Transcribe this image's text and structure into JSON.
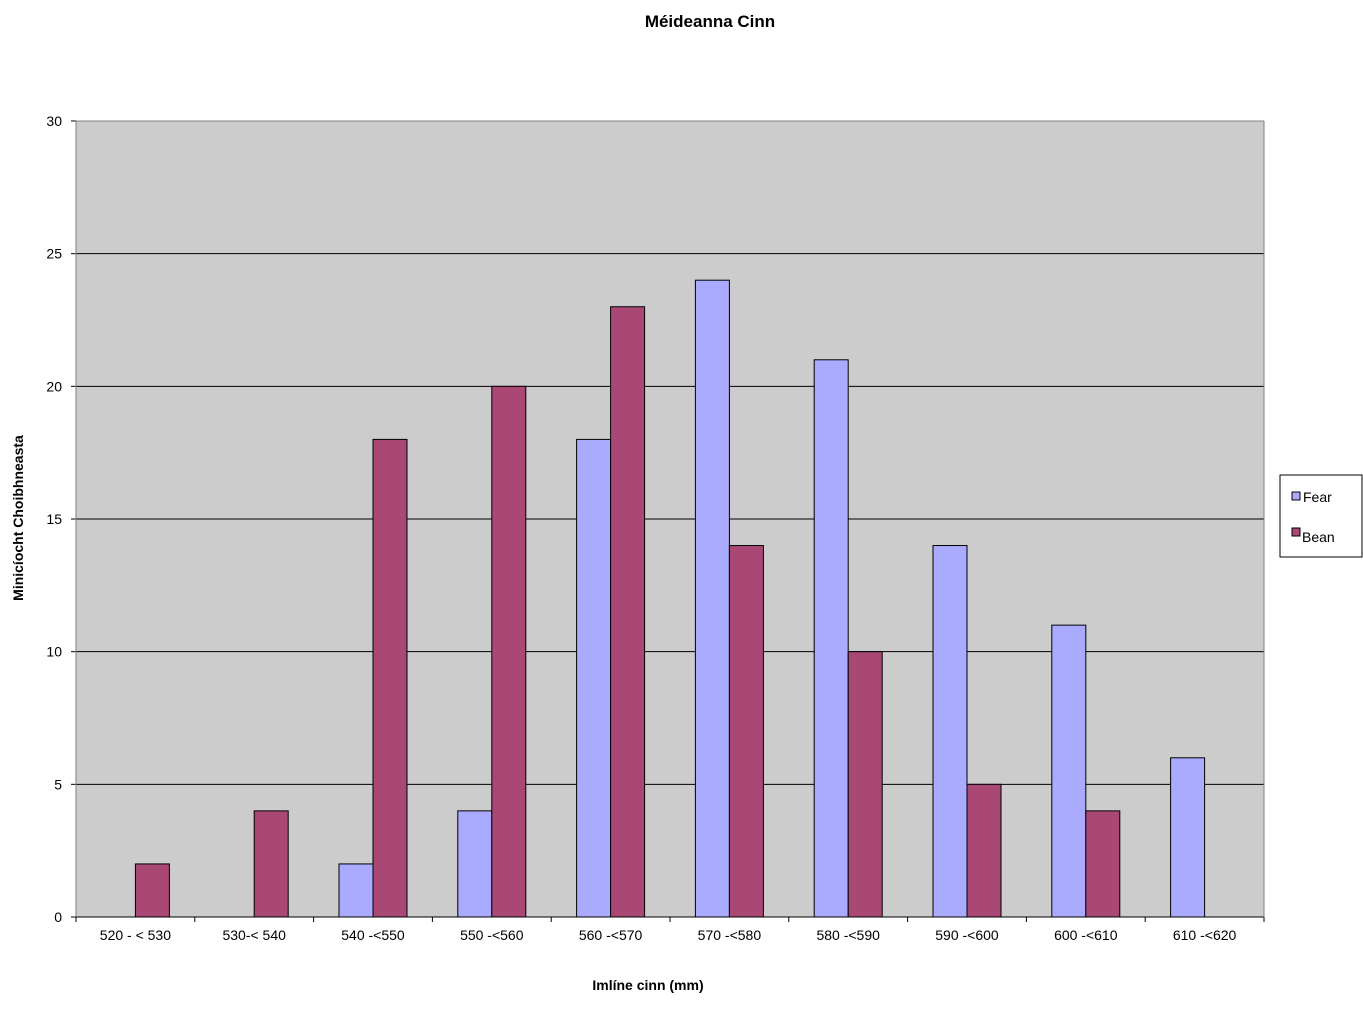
{
  "chart_data": {
    "type": "bar",
    "title": "Méideanna Cinn",
    "xlabel": "Imlíne cinn (mm)",
    "ylabel": "Minicíocht Choibhneasta",
    "categories": [
      "520 - < 530",
      "530-< 540",
      "540 -<550",
      "550 -<560",
      "560 -<570",
      "570 -<580",
      "580 -<590",
      "590 -<600",
      "600 -<610",
      "610 -<620"
    ],
    "series": [
      {
        "name": "Fear",
        "color": "#aaaaff",
        "values": [
          0,
          0,
          2,
          4,
          18,
          24,
          21,
          14,
          11,
          6
        ]
      },
      {
        "name": "Bean",
        "color": "#a94775",
        "values": [
          2,
          4,
          18,
          20,
          23,
          14,
          10,
          5,
          4,
          0
        ]
      }
    ],
    "ylim": [
      0,
      30
    ],
    "yticks": [
      0,
      5,
      10,
      15,
      20,
      25,
      30
    ],
    "grid": true,
    "plot_background": "#cccccc",
    "legend_position": "right"
  }
}
